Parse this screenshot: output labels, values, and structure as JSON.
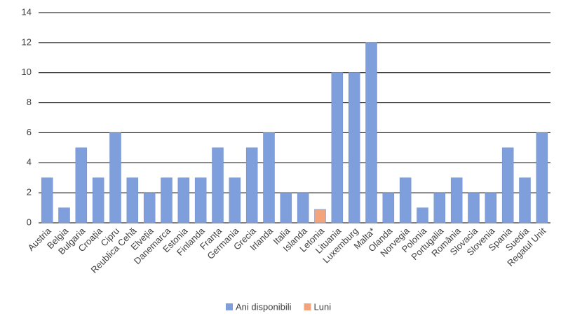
{
  "chart_data": {
    "type": "bar",
    "categories": [
      "Austria",
      "Belgia",
      "Bulgaria",
      "Croația",
      "Cipru",
      "Reublica Cehă",
      "Elveția",
      "Danemarca",
      "Estonia",
      "Finlanda",
      "Franța",
      "Germania",
      "Grecia",
      "Irlanda",
      "Italia",
      "Islanda",
      "Letonia",
      "Lituania",
      "Luxemburg",
      "Malta*",
      "Olanda",
      "Norvegia",
      "Polonia",
      "Portugalia",
      "România",
      "Slovacia",
      "Slovenia",
      "Spania",
      "Suedia",
      "Regatul Unit"
    ],
    "series": [
      {
        "name": "Ani disponibili",
        "color": "#7f9fdc",
        "values": [
          3,
          1,
          5,
          3,
          6,
          3,
          2,
          3,
          3,
          3,
          5,
          3,
          5,
          6,
          2,
          2,
          null,
          10,
          10,
          12,
          2,
          3,
          1,
          2,
          3,
          2,
          2,
          5,
          3,
          6
        ]
      },
      {
        "name": "Luni",
        "color": "#f4a47a",
        "values": [
          null,
          null,
          null,
          null,
          null,
          null,
          null,
          null,
          null,
          null,
          null,
          null,
          null,
          null,
          null,
          null,
          0.9,
          null,
          null,
          null,
          null,
          null,
          null,
          null,
          null,
          null,
          null,
          null,
          null,
          null
        ]
      }
    ],
    "ylim": [
      0,
      14
    ],
    "yticks": [
      0,
      2,
      4,
      6,
      8,
      10,
      12,
      14
    ],
    "grid": true,
    "legend": "bottom"
  }
}
